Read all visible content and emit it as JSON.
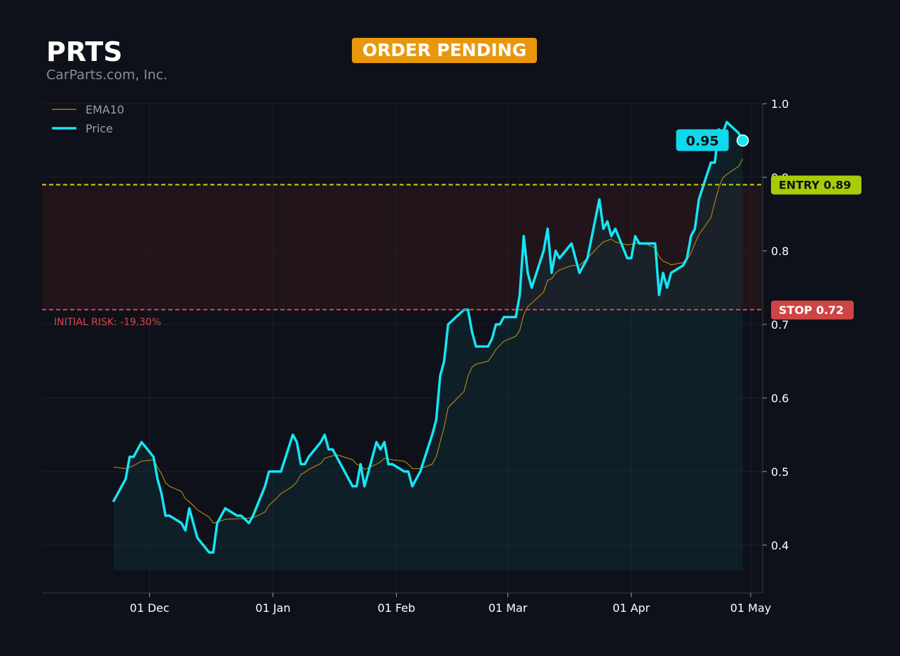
{
  "header": {
    "ticker": "PRTS",
    "company": "CarParts.com, Inc.",
    "status_badge": "ORDER PENDING"
  },
  "colors": {
    "background": "#0e1119",
    "price": "#14e6f5",
    "ema": "#a57c12",
    "entry": "#c8d60c",
    "entry_tag": "#a8cc08",
    "stop": "#d84848",
    "stop_tag": "#cf4444",
    "badge": "#e8970d"
  },
  "chart_data": {
    "type": "line",
    "x_axis": "date",
    "y_axis": {
      "range": [
        0.335,
        1.0
      ],
      "ticks": [
        0.4,
        0.5,
        0.6,
        0.7,
        0.8,
        0.9,
        1.0
      ],
      "tick_labels": [
        "0.4",
        "0.5",
        "0.6",
        "0.7",
        "0.8",
        "0.9",
        "1.0"
      ],
      "position": "right"
    },
    "x_range": [
      "2024-11-04",
      "2025-05-04"
    ],
    "x_ticks": [
      {
        "date": "2024-12-01",
        "label": "01 Dec"
      },
      {
        "date": "2025-01-01",
        "label": "01 Jan"
      },
      {
        "date": "2025-02-01",
        "label": "01 Feb"
      },
      {
        "date": "2025-03-01",
        "label": "01 Mar"
      },
      {
        "date": "2025-04-01",
        "label": "01 Apr"
      },
      {
        "date": "2025-05-01",
        "label": "01 May"
      }
    ],
    "grid": true,
    "legend": {
      "placement": "top-left",
      "entries": [
        "EMA10",
        "Price"
      ]
    },
    "series": [
      {
        "name": "Price",
        "points": [
          [
            "2024-11-22",
            0.46
          ],
          [
            "2024-11-25",
            0.49
          ],
          [
            "2024-11-26",
            0.52
          ],
          [
            "2024-11-27",
            0.52
          ],
          [
            "2024-11-29",
            0.54
          ],
          [
            "2024-12-02",
            0.52
          ],
          [
            "2024-12-03",
            0.49
          ],
          [
            "2024-12-04",
            0.47
          ],
          [
            "2024-12-05",
            0.44
          ],
          [
            "2024-12-06",
            0.44
          ],
          [
            "2024-12-09",
            0.43
          ],
          [
            "2024-12-10",
            0.42
          ],
          [
            "2024-12-11",
            0.45
          ],
          [
            "2024-12-13",
            0.41
          ],
          [
            "2024-12-16",
            0.39
          ],
          [
            "2024-12-17",
            0.39
          ],
          [
            "2024-12-18",
            0.43
          ],
          [
            "2024-12-20",
            0.45
          ],
          [
            "2024-12-23",
            0.44
          ],
          [
            "2024-12-24",
            0.44
          ],
          [
            "2024-12-26",
            0.43
          ],
          [
            "2024-12-27",
            0.44
          ],
          [
            "2024-12-30",
            0.48
          ],
          [
            "2024-12-31",
            0.5
          ],
          [
            "2025-01-02",
            0.5
          ],
          [
            "2025-01-03",
            0.5
          ],
          [
            "2025-01-06",
            0.55
          ],
          [
            "2025-01-07",
            0.54
          ],
          [
            "2025-01-08",
            0.51
          ],
          [
            "2025-01-09",
            0.51
          ],
          [
            "2025-01-10",
            0.52
          ],
          [
            "2025-01-13",
            0.54
          ],
          [
            "2025-01-14",
            0.55
          ],
          [
            "2025-01-15",
            0.53
          ],
          [
            "2025-01-16",
            0.53
          ],
          [
            "2025-01-17",
            0.52
          ],
          [
            "2025-01-21",
            0.48
          ],
          [
            "2025-01-22",
            0.48
          ],
          [
            "2025-01-23",
            0.51
          ],
          [
            "2025-01-24",
            0.48
          ],
          [
            "2025-01-27",
            0.54
          ],
          [
            "2025-01-28",
            0.53
          ],
          [
            "2025-01-29",
            0.54
          ],
          [
            "2025-01-30",
            0.51
          ],
          [
            "2025-01-31",
            0.51
          ],
          [
            "2025-02-03",
            0.5
          ],
          [
            "2025-02-04",
            0.5
          ],
          [
            "2025-02-05",
            0.48
          ],
          [
            "2025-02-07",
            0.5
          ],
          [
            "2025-02-10",
            0.55
          ],
          [
            "2025-02-11",
            0.57
          ],
          [
            "2025-02-12",
            0.63
          ],
          [
            "2025-02-13",
            0.65
          ],
          [
            "2025-02-14",
            0.7
          ],
          [
            "2025-02-18",
            0.72
          ],
          [
            "2025-02-19",
            0.72
          ],
          [
            "2025-02-20",
            0.69
          ],
          [
            "2025-02-21",
            0.67
          ],
          [
            "2025-02-24",
            0.67
          ],
          [
            "2025-02-25",
            0.68
          ],
          [
            "2025-02-26",
            0.7
          ],
          [
            "2025-02-27",
            0.7
          ],
          [
            "2025-02-28",
            0.71
          ],
          [
            "2025-03-03",
            0.71
          ],
          [
            "2025-03-04",
            0.74
          ],
          [
            "2025-03-05",
            0.82
          ],
          [
            "2025-03-06",
            0.77
          ],
          [
            "2025-03-07",
            0.75
          ],
          [
            "2025-03-10",
            0.8
          ],
          [
            "2025-03-11",
            0.83
          ],
          [
            "2025-03-12",
            0.77
          ],
          [
            "2025-03-13",
            0.8
          ],
          [
            "2025-03-14",
            0.79
          ],
          [
            "2025-03-17",
            0.81
          ],
          [
            "2025-03-19",
            0.77
          ],
          [
            "2025-03-21",
            0.79
          ],
          [
            "2025-03-24",
            0.87
          ],
          [
            "2025-03-25",
            0.83
          ],
          [
            "2025-03-26",
            0.84
          ],
          [
            "2025-03-27",
            0.82
          ],
          [
            "2025-03-28",
            0.83
          ],
          [
            "2025-03-31",
            0.79
          ],
          [
            "2025-04-01",
            0.79
          ],
          [
            "2025-04-02",
            0.82
          ],
          [
            "2025-04-03",
            0.81
          ],
          [
            "2025-04-04",
            0.81
          ],
          [
            "2025-04-07",
            0.81
          ],
          [
            "2025-04-08",
            0.74
          ],
          [
            "2025-04-09",
            0.77
          ],
          [
            "2025-04-10",
            0.75
          ],
          [
            "2025-04-11",
            0.77
          ],
          [
            "2025-04-14",
            0.78
          ],
          [
            "2025-04-15",
            0.79
          ],
          [
            "2025-04-16",
            0.82
          ],
          [
            "2025-04-17",
            0.83
          ],
          [
            "2025-04-18",
            0.87
          ],
          [
            "2025-04-21",
            0.92
          ],
          [
            "2025-04-22",
            0.92
          ],
          [
            "2025-04-23",
            0.965
          ],
          [
            "2025-04-24",
            0.96
          ],
          [
            "2025-04-25",
            0.975
          ],
          [
            "2025-04-28",
            0.96
          ],
          [
            "2025-04-29",
            0.95
          ]
        ]
      },
      {
        "name": "EMA10",
        "points": [
          [
            "2024-11-22",
            0.506
          ],
          [
            "2024-11-25",
            0.504
          ],
          [
            "2024-11-27",
            0.508
          ],
          [
            "2024-11-29",
            0.514
          ],
          [
            "2024-12-02",
            0.516
          ],
          [
            "2024-12-03",
            0.506
          ],
          [
            "2024-12-04",
            0.497
          ],
          [
            "2024-12-05",
            0.485
          ],
          [
            "2024-12-06",
            0.48
          ],
          [
            "2024-12-09",
            0.473
          ],
          [
            "2024-12-10",
            0.463
          ],
          [
            "2024-12-11",
            0.459
          ],
          [
            "2024-12-13",
            0.448
          ],
          [
            "2024-12-16",
            0.438
          ],
          [
            "2024-12-17",
            0.43
          ],
          [
            "2024-12-18",
            0.431
          ],
          [
            "2024-12-20",
            0.435
          ],
          [
            "2024-12-24",
            0.436
          ],
          [
            "2024-12-27",
            0.437
          ],
          [
            "2024-12-30",
            0.445
          ],
          [
            "2024-12-31",
            0.454
          ],
          [
            "2025-01-02",
            0.464
          ],
          [
            "2025-01-03",
            0.47
          ],
          [
            "2025-01-06",
            0.48
          ],
          [
            "2025-01-07",
            0.486
          ],
          [
            "2025-01-08",
            0.496
          ],
          [
            "2025-01-09",
            0.499
          ],
          [
            "2025-01-10",
            0.503
          ],
          [
            "2025-01-13",
            0.511
          ],
          [
            "2025-01-14",
            0.518
          ],
          [
            "2025-01-17",
            0.523
          ],
          [
            "2025-01-21",
            0.516
          ],
          [
            "2025-01-22",
            0.51
          ],
          [
            "2025-01-23",
            0.508
          ],
          [
            "2025-01-24",
            0.503
          ],
          [
            "2025-01-27",
            0.51
          ],
          [
            "2025-01-28",
            0.513
          ],
          [
            "2025-01-29",
            0.518
          ],
          [
            "2025-01-31",
            0.516
          ],
          [
            "2025-02-03",
            0.514
          ],
          [
            "2025-02-04",
            0.51
          ],
          [
            "2025-02-05",
            0.504
          ],
          [
            "2025-02-07",
            0.504
          ],
          [
            "2025-02-10",
            0.51
          ],
          [
            "2025-02-11",
            0.52
          ],
          [
            "2025-02-13",
            0.56
          ],
          [
            "2025-02-14",
            0.587
          ],
          [
            "2025-02-18",
            0.609
          ],
          [
            "2025-02-19",
            0.63
          ],
          [
            "2025-02-20",
            0.642
          ],
          [
            "2025-02-21",
            0.646
          ],
          [
            "2025-02-24",
            0.65
          ],
          [
            "2025-02-25",
            0.657
          ],
          [
            "2025-02-26",
            0.666
          ],
          [
            "2025-02-28",
            0.677
          ],
          [
            "2025-03-03",
            0.684
          ],
          [
            "2025-03-04",
            0.692
          ],
          [
            "2025-03-05",
            0.713
          ],
          [
            "2025-03-06",
            0.724
          ],
          [
            "2025-03-10",
            0.744
          ],
          [
            "2025-03-11",
            0.76
          ],
          [
            "2025-03-12",
            0.762
          ],
          [
            "2025-03-13",
            0.77
          ],
          [
            "2025-03-14",
            0.774
          ],
          [
            "2025-03-17",
            0.78
          ],
          [
            "2025-03-19",
            0.78
          ],
          [
            "2025-03-21",
            0.79
          ],
          [
            "2025-03-24",
            0.807
          ],
          [
            "2025-03-25",
            0.812
          ],
          [
            "2025-03-27",
            0.816
          ],
          [
            "2025-03-28",
            0.812
          ],
          [
            "2025-03-31",
            0.808
          ],
          [
            "2025-04-02",
            0.81
          ],
          [
            "2025-04-04",
            0.811
          ],
          [
            "2025-04-07",
            0.804
          ],
          [
            "2025-04-08",
            0.792
          ],
          [
            "2025-04-09",
            0.786
          ],
          [
            "2025-04-10",
            0.784
          ],
          [
            "2025-04-11",
            0.781
          ],
          [
            "2025-04-14",
            0.784
          ],
          [
            "2025-04-15",
            0.788
          ],
          [
            "2025-04-16",
            0.797
          ],
          [
            "2025-04-17",
            0.81
          ],
          [
            "2025-04-18",
            0.822
          ],
          [
            "2025-04-21",
            0.845
          ],
          [
            "2025-04-22",
            0.866
          ],
          [
            "2025-04-23",
            0.886
          ],
          [
            "2025-04-24",
            0.899
          ],
          [
            "2025-04-25",
            0.904
          ],
          [
            "2025-04-28",
            0.915
          ],
          [
            "2025-04-29",
            0.925
          ]
        ]
      }
    ],
    "last_price_label": "0.95",
    "reference_lines": [
      {
        "name": "entry",
        "value": 0.89,
        "label": "ENTRY 0.89",
        "style": "dashed"
      },
      {
        "name": "stop",
        "value": 0.72,
        "label": "STOP 0.72",
        "style": "dashed"
      }
    ],
    "risk_annotation": "INITIAL RISK: -19.30%"
  }
}
